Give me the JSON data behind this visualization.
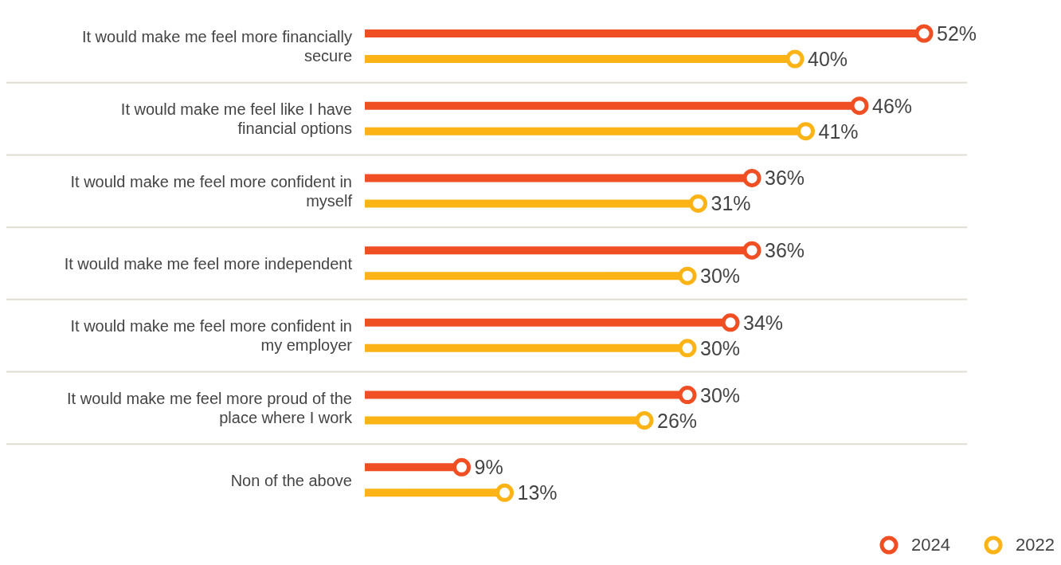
{
  "chart_data": {
    "type": "lollipop",
    "orientation": "horizontal",
    "categories": [
      "It would make me feel more financially secure",
      "It would make me feel like I have financial options",
      "It would make me feel more confident in myself",
      "It would make me feel more independent",
      "It would make me feel more confident in my employer",
      "It would make me feel more proud of the place where I work",
      "Non of the above"
    ],
    "series": [
      {
        "name": "2024",
        "color": "#f04e23",
        "values": [
          52,
          46,
          36,
          36,
          34,
          30,
          9
        ],
        "value_labels": [
          "52%",
          "46%",
          "36%",
          "36%",
          "34%",
          "30%",
          "9%"
        ]
      },
      {
        "name": "2022",
        "color": "#fbb316",
        "values": [
          40,
          41,
          31,
          30,
          30,
          26,
          13
        ],
        "value_labels": [
          "40%",
          "41%",
          "31%",
          "30%",
          "30%",
          "26%",
          "13%"
        ]
      }
    ],
    "xlim": [
      0,
      56
    ],
    "marker": "circle",
    "legend": "bottom right"
  }
}
